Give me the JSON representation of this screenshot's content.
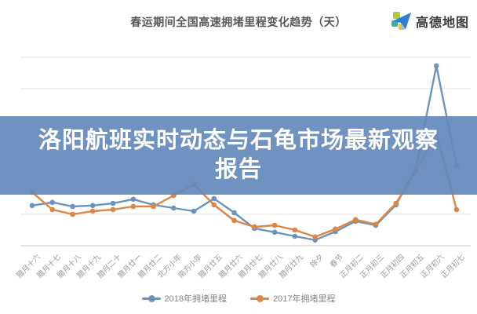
{
  "header": {
    "title": "春运期间全国高速拥堵里程变化趋势（天）",
    "logo_text": "高德地图",
    "logo_icon": "paper-plane-icon"
  },
  "overlay": {
    "line1": "洛阳航班实时动态与石龟市场最新观察",
    "line2": "报告",
    "bg_color": "#6489bb"
  },
  "chart_data": {
    "type": "line",
    "title": "春运期间全国高速拥堵里程变化趋势（天）",
    "categories": [
      "腊月十六",
      "腊月十七",
      "腊月十八",
      "腊月十九",
      "腊月二十",
      "腊月廿一",
      "腊月廿二",
      "北方小年",
      "南方小年",
      "腊月廿五",
      "腊月廿六",
      "腊月廿七",
      "腊月廿八",
      "腊月廿九",
      "除夕",
      "春节",
      "正月初二",
      "正月初三",
      "正月初四",
      "正月初五",
      "正月初六",
      "正月初七"
    ],
    "series": [
      {
        "name": "2018年拥堵里程",
        "color": "#6a94bc",
        "values": [
          1.28,
          1.38,
          1.25,
          1.28,
          1.35,
          1.48,
          1.3,
          1.2,
          1.1,
          1.5,
          1.05,
          0.55,
          0.43,
          0.3,
          0.18,
          0.45,
          0.78,
          0.65,
          1.3,
          2.48,
          5.73,
          2.55
        ]
      },
      {
        "name": "2017年拥堵里程",
        "color": "#dc8544",
        "values": [
          1.7,
          1.15,
          1.0,
          1.1,
          1.15,
          1.25,
          1.25,
          1.6,
          1.95,
          1.3,
          0.8,
          0.6,
          0.65,
          0.5,
          0.28,
          0.53,
          0.83,
          0.68,
          1.35,
          2.38,
          3.58,
          1.15
        ]
      }
    ],
    "xlabel": "",
    "ylabel": "",
    "y_axis_labels_visible": false,
    "ylim": [
      0,
      6
    ],
    "gridlines": true,
    "legend_position": "bottom",
    "note": "y-axis has no visible tick labels; values are in gridline units estimated from pixel positions"
  },
  "colors": {
    "grid": "#efefef",
    "axis": "#d8d8d8",
    "title_text": "#585858",
    "axis_label_text": "#999999",
    "legend_text": "#848484",
    "banner_text": "#ffffff"
  }
}
